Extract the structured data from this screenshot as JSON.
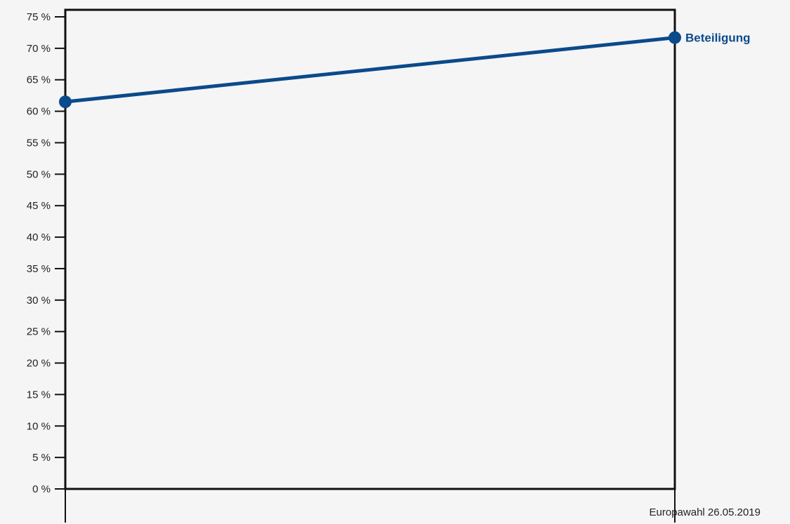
{
  "chart_data": {
    "type": "line",
    "title": "",
    "xlabel": "",
    "ylabel": "",
    "ylim": [
      0,
      75
    ],
    "y_ticks": [
      0,
      5,
      10,
      15,
      20,
      25,
      30,
      35,
      40,
      45,
      50,
      55,
      60,
      65,
      70,
      75
    ],
    "y_tick_suffix": " %",
    "x_ticks": [
      "",
      "Europawahl 26.05.2019"
    ],
    "grid": false,
    "series": [
      {
        "name": "Beteiligung",
        "color": "#0b4a8b",
        "values": [
          61.5,
          71.7
        ]
      }
    ]
  }
}
